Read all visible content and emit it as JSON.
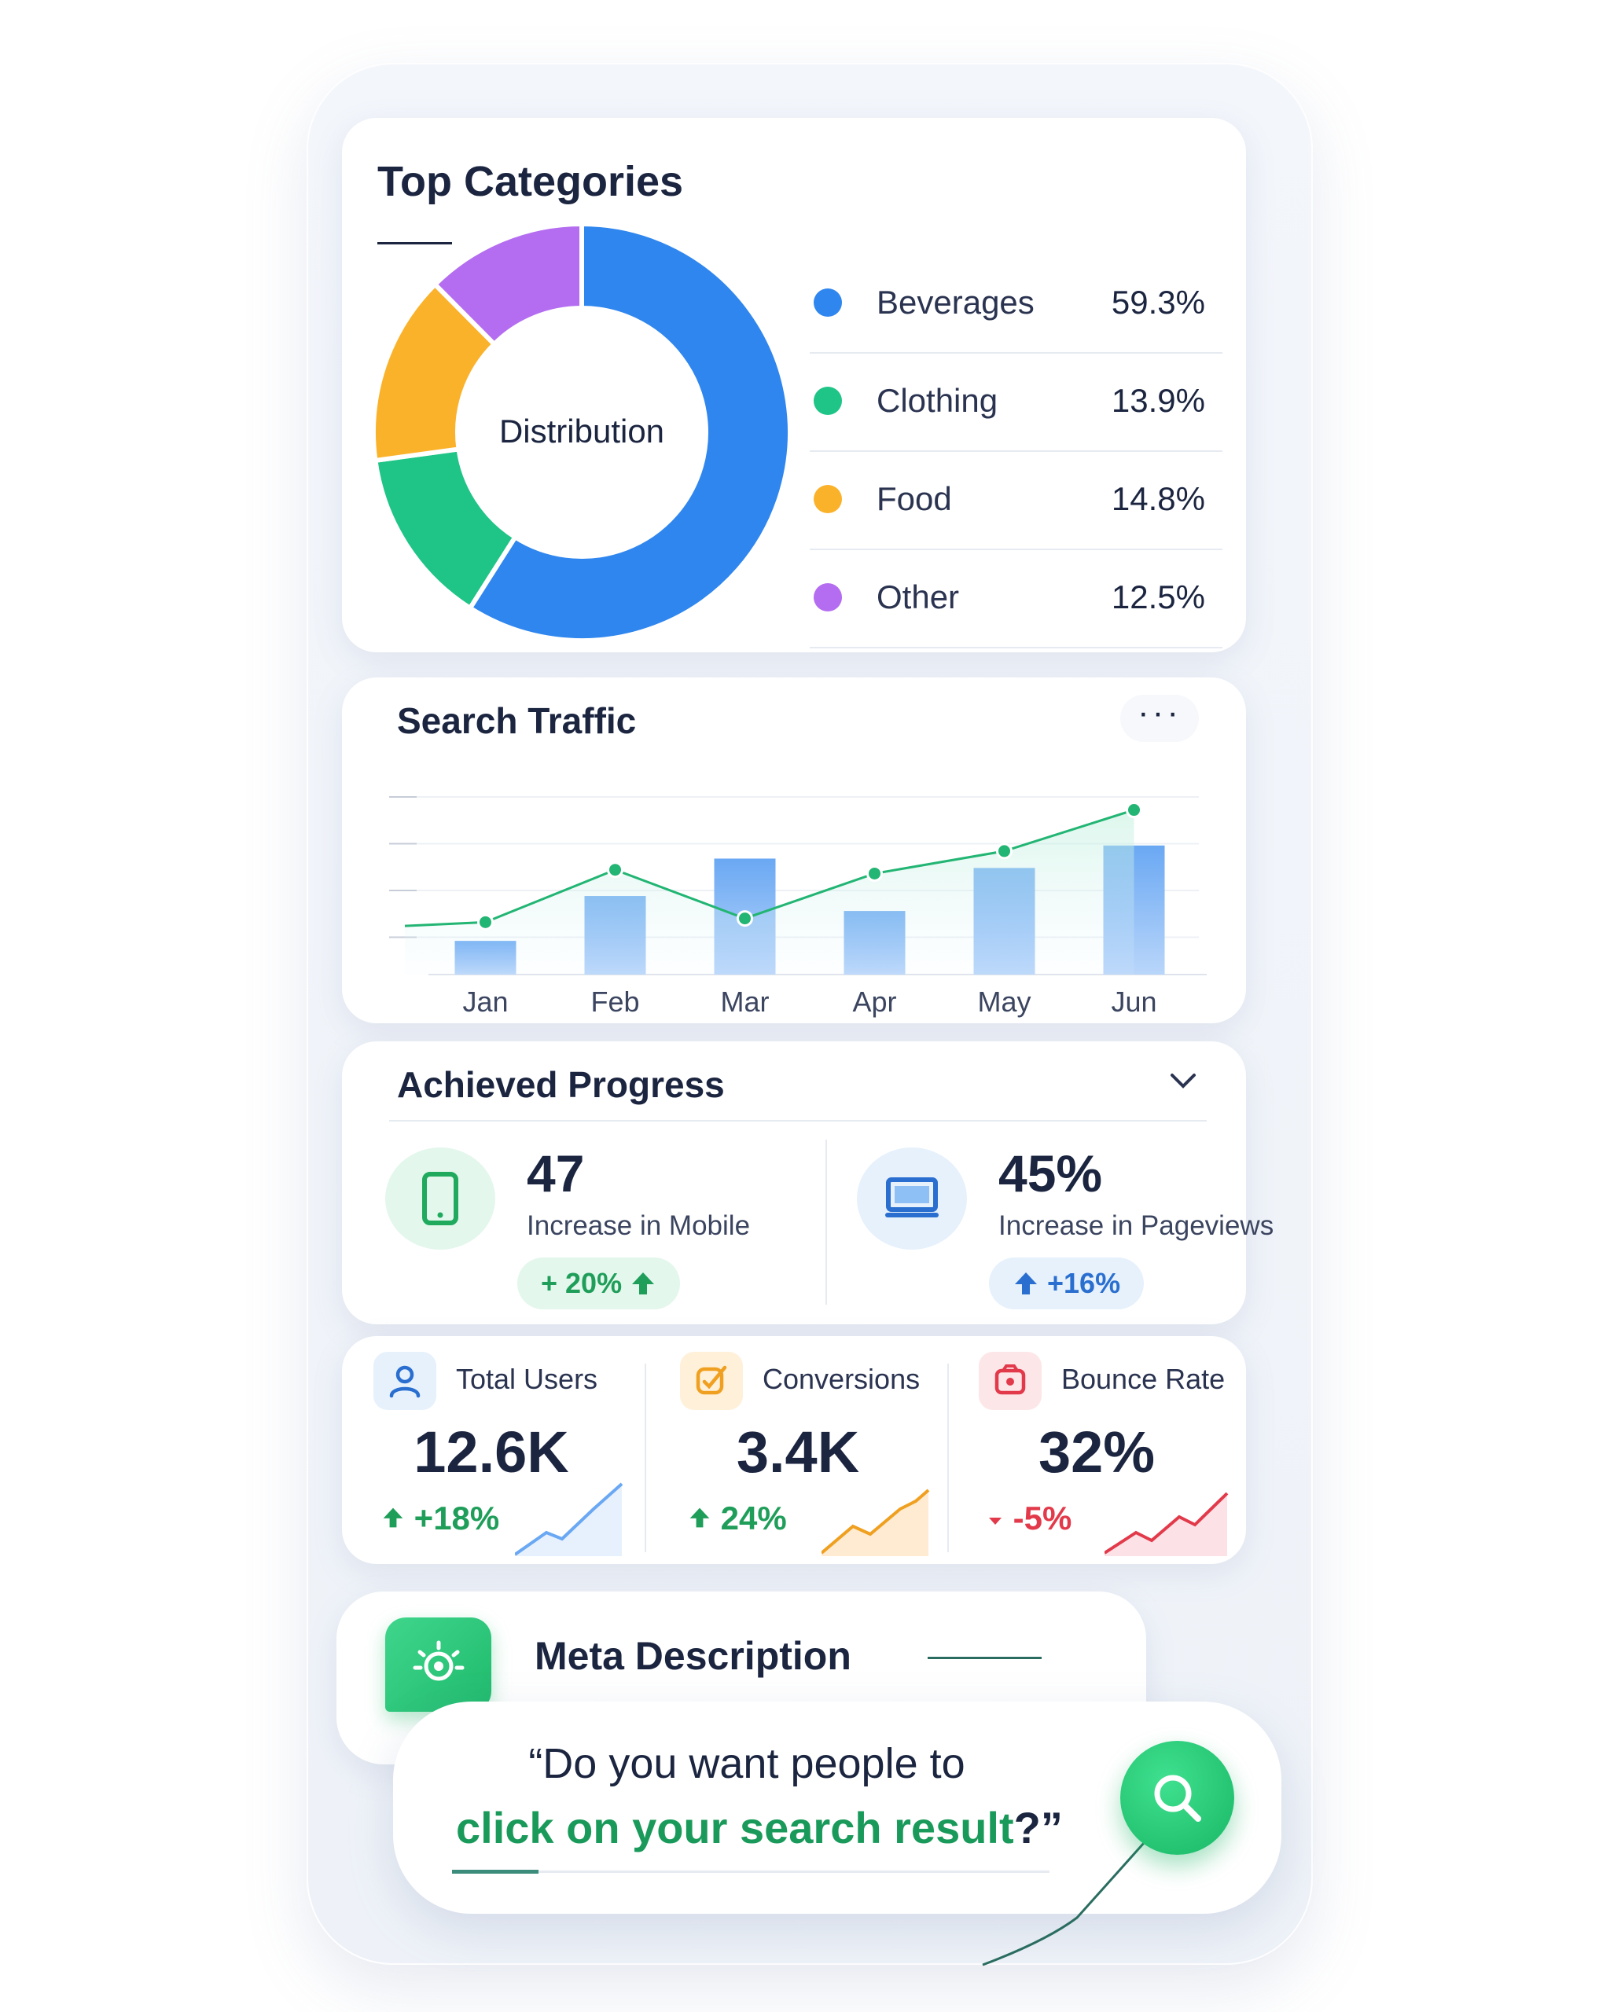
{
  "top_categories": {
    "title": "Top Categories",
    "center_label": "Distribution",
    "items": [
      {
        "name": "Beverages",
        "value": "59.3%",
        "color": "#2f86ee"
      },
      {
        "name": "Clothing",
        "value": "13.9%",
        "color": "#1fc487"
      },
      {
        "name": "Food",
        "value": "14.8%",
        "color": "#fbb22b"
      },
      {
        "name": "Other",
        "value": "12.5%",
        "color": "#b46df0"
      }
    ]
  },
  "search_traffic": {
    "title": "Search Traffic",
    "more_label": "···"
  },
  "chart_data": {
    "type": "bar",
    "categories": [
      "Jan",
      "Feb",
      "Mar",
      "Apr",
      "May",
      "Jun"
    ],
    "series": [
      {
        "type": "bar",
        "values": [
          18,
          42,
          62,
          34,
          57,
          69
        ],
        "color": "#7fb5f5"
      },
      {
        "type": "line",
        "values": [
          28,
          56,
          30,
          54,
          66,
          88
        ],
        "color": "#22b573"
      }
    ],
    "ylim": [
      0,
      100
    ],
    "grid": true
  },
  "progress": {
    "title": "Achieved Progress",
    "metrics": [
      {
        "value": "47",
        "label": "Increase in Mobile",
        "delta": "+ 20%",
        "icon": "mobile-icon"
      },
      {
        "value": "45%",
        "label": "Increase in Pageviews",
        "delta": "+16%",
        "icon": "monitor-icon"
      }
    ]
  },
  "kpis": [
    {
      "label": "Total Users",
      "value": "12.6K",
      "delta": "+18%",
      "trend": "up",
      "color": "#2f86ee",
      "icon": "user-icon"
    },
    {
      "label": "Conversions",
      "value": "3.4K",
      "delta": "24%",
      "trend": "up",
      "color": "#f0a020",
      "icon": "edit-check-icon"
    },
    {
      "label": "Bounce Rate",
      "value": "32%",
      "delta": "-5%",
      "trend": "down",
      "color": "#e23a4a",
      "icon": "bounce-icon"
    }
  ],
  "meta": {
    "title": "Meta Description",
    "quote_line1": "“Do you want people to",
    "quote_highlight": "click on your search result",
    "quote_end": "?”"
  }
}
